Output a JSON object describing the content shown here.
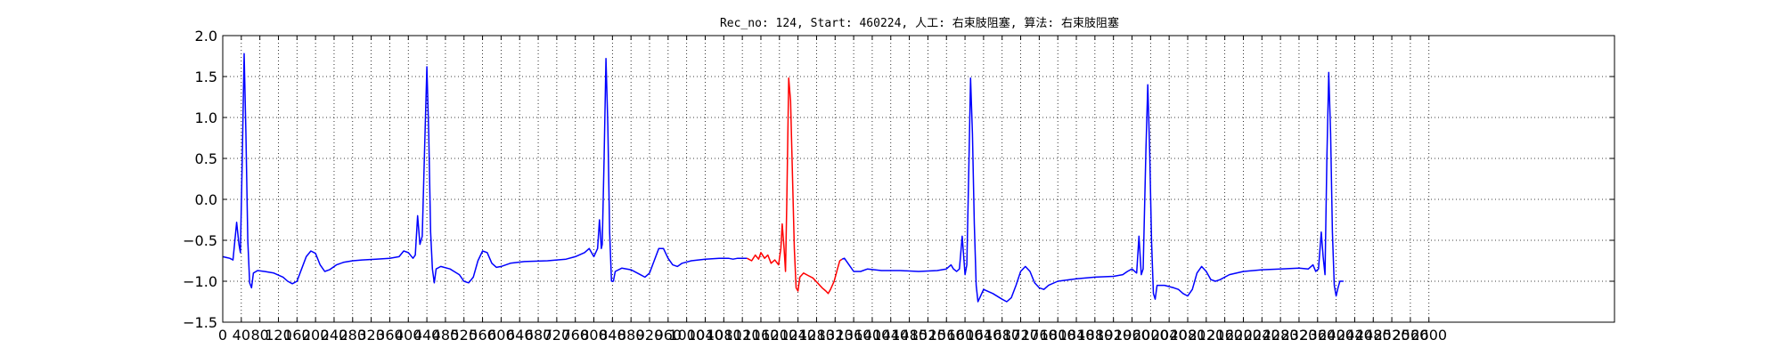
{
  "chart_data": {
    "type": "line",
    "title": "Rec_no: 124, Start: 460224, 人工: 右束肢阻塞, 算法: 右束肢阻塞",
    "xlabel": "",
    "ylabel": "",
    "xlim": [
      0,
      3000
    ],
    "ylim": [
      -1.5,
      2.0
    ],
    "grid": true,
    "x_tick_values": [
      0,
      40,
      80,
      120,
      160,
      200,
      240,
      280,
      320,
      360,
      400,
      440,
      480,
      520,
      560,
      600,
      640,
      680,
      720,
      760,
      800,
      840,
      880,
      920,
      960,
      1000,
      1040,
      1080,
      1120,
      1160,
      1200,
      1240,
      1280,
      1320,
      1360,
      1400,
      1440,
      1480,
      1520,
      1560,
      1600,
      1640,
      1680,
      1720,
      1760,
      1800,
      1840,
      1880,
      1920,
      1960,
      2000,
      2040,
      2080,
      2120,
      2160,
      2200,
      2240,
      2280,
      2320,
      2360,
      2400,
      2440,
      2480,
      2520,
      2560,
      2600
    ],
    "x_tick_labels": [
      "0",
      "40",
      "80",
      "120",
      "160",
      "200",
      "240",
      "280",
      "320",
      "360",
      "400",
      "440",
      "480",
      "520",
      "560",
      "600",
      "640",
      "680",
      "720",
      "760",
      "800",
      "840",
      "880",
      "920",
      "960",
      "1000",
      "1040",
      "1080",
      "1120",
      "1160",
      "1200",
      "1240",
      "1280",
      "1320",
      "1360",
      "1400",
      "1440",
      "1480",
      "1520",
      "1560",
      "1600",
      "1640",
      "1680",
      "1720",
      "1760",
      "1800",
      "1840",
      "1880",
      "1920",
      "1960",
      "2000",
      "2040",
      "2080",
      "2120",
      "2160",
      "2200",
      "2240",
      "2280",
      "2320",
      "2360",
      "2400",
      "2440",
      "2480",
      "2520",
      "2560",
      "2600"
    ],
    "y_tick_values": [
      -1.5,
      -1.0,
      -0.5,
      0.0,
      0.5,
      1.0,
      1.5,
      2.0
    ],
    "y_tick_labels": [
      "−1.5",
      "−1.0",
      "−0.5",
      "0.0",
      "0.5",
      "1.0",
      "1.5",
      "2.0"
    ],
    "series": [
      {
        "color": "#0000ff",
        "points": [
          [
            0,
            -0.7
          ],
          [
            15,
            -0.72
          ],
          [
            22,
            -0.74
          ],
          [
            30,
            -0.28
          ],
          [
            35,
            -0.55
          ],
          [
            38,
            -0.65
          ],
          [
            42,
            0.5
          ],
          [
            46,
            1.78
          ],
          [
            50,
            0.8
          ],
          [
            54,
            -0.5
          ],
          [
            58,
            -1.02
          ],
          [
            62,
            -1.08
          ],
          [
            66,
            -0.9
          ],
          [
            75,
            -0.87
          ],
          [
            90,
            -0.88
          ],
          [
            110,
            -0.9
          ],
          [
            130,
            -0.95
          ],
          [
            140,
            -1.0
          ],
          [
            150,
            -1.03
          ],
          [
            160,
            -1.0
          ],
          [
            170,
            -0.85
          ],
          [
            180,
            -0.7
          ],
          [
            190,
            -0.63
          ],
          [
            200,
            -0.66
          ],
          [
            210,
            -0.8
          ],
          [
            220,
            -0.88
          ],
          [
            230,
            -0.86
          ],
          [
            245,
            -0.8
          ],
          [
            260,
            -0.77
          ],
          [
            280,
            -0.75
          ],
          [
            300,
            -0.74
          ],
          [
            330,
            -0.73
          ],
          [
            360,
            -0.72
          ],
          [
            380,
            -0.7
          ],
          [
            390,
            -0.63
          ],
          [
            400,
            -0.65
          ],
          [
            410,
            -0.72
          ],
          [
            415,
            -0.68
          ],
          [
            420,
            -0.2
          ],
          [
            425,
            -0.55
          ],
          [
            430,
            -0.45
          ],
          [
            435,
            0.6
          ],
          [
            440,
            1.62
          ],
          [
            444,
            0.8
          ],
          [
            448,
            -0.4
          ],
          [
            452,
            -0.85
          ],
          [
            456,
            -1.02
          ],
          [
            460,
            -0.85
          ],
          [
            470,
            -0.82
          ],
          [
            490,
            -0.85
          ],
          [
            510,
            -0.92
          ],
          [
            520,
            -1.0
          ],
          [
            530,
            -1.02
          ],
          [
            540,
            -0.95
          ],
          [
            550,
            -0.75
          ],
          [
            560,
            -0.63
          ],
          [
            570,
            -0.65
          ],
          [
            580,
            -0.78
          ],
          [
            590,
            -0.83
          ],
          [
            600,
            -0.82
          ],
          [
            620,
            -0.78
          ],
          [
            650,
            -0.76
          ],
          [
            700,
            -0.75
          ],
          [
            740,
            -0.73
          ],
          [
            760,
            -0.7
          ],
          [
            780,
            -0.65
          ],
          [
            790,
            -0.6
          ],
          [
            800,
            -0.7
          ],
          [
            808,
            -0.6
          ],
          [
            812,
            -0.25
          ],
          [
            816,
            -0.6
          ],
          [
            818,
            -0.55
          ],
          [
            822,
            0.5
          ],
          [
            826,
            1.72
          ],
          [
            830,
            0.9
          ],
          [
            834,
            -0.4
          ],
          [
            838,
            -1.0
          ],
          [
            842,
            -1.0
          ],
          [
            846,
            -0.88
          ],
          [
            860,
            -0.84
          ],
          [
            880,
            -0.86
          ],
          [
            900,
            -0.92
          ],
          [
            910,
            -0.95
          ],
          [
            920,
            -0.9
          ],
          [
            930,
            -0.75
          ],
          [
            940,
            -0.6
          ],
          [
            950,
            -0.6
          ],
          [
            960,
            -0.72
          ],
          [
            970,
            -0.8
          ],
          [
            980,
            -0.82
          ],
          [
            990,
            -0.78
          ],
          [
            1010,
            -0.75
          ],
          [
            1040,
            -0.73
          ],
          [
            1070,
            -0.72
          ],
          [
            1090,
            -0.72
          ],
          [
            1100,
            -0.73
          ],
          [
            1110,
            -0.72
          ],
          [
            1120,
            -0.72
          ],
          [
            1130,
            -0.72
          ]
        ]
      },
      {
        "color": "#ff0000",
        "points": [
          [
            1130,
            -0.72
          ],
          [
            1140,
            -0.75
          ],
          [
            1148,
            -0.68
          ],
          [
            1155,
            -0.73
          ],
          [
            1160,
            -0.65
          ],
          [
            1168,
            -0.72
          ],
          [
            1175,
            -0.68
          ],
          [
            1182,
            -0.78
          ],
          [
            1190,
            -0.74
          ],
          [
            1198,
            -0.8
          ],
          [
            1203,
            -0.6
          ],
          [
            1206,
            -0.3
          ],
          [
            1210,
            -0.6
          ],
          [
            1213,
            -0.88
          ],
          [
            1216,
            0.0
          ],
          [
            1220,
            1.48
          ],
          [
            1224,
            1.2
          ],
          [
            1228,
            0.3
          ],
          [
            1232,
            -0.6
          ],
          [
            1236,
            -1.08
          ],
          [
            1240,
            -1.12
          ],
          [
            1244,
            -0.95
          ],
          [
            1252,
            -0.9
          ],
          [
            1262,
            -0.93
          ],
          [
            1272,
            -0.96
          ],
          [
            1282,
            -1.02
          ],
          [
            1292,
            -1.08
          ],
          [
            1300,
            -1.12
          ],
          [
            1305,
            -1.15
          ],
          [
            1310,
            -1.1
          ],
          [
            1318,
            -1.0
          ],
          [
            1325,
            -0.85
          ],
          [
            1330,
            -0.75
          ],
          [
            1335,
            -0.73
          ]
        ]
      },
      {
        "color": "#0000ff",
        "points": [
          [
            1335,
            -0.73
          ],
          [
            1340,
            -0.72
          ],
          [
            1350,
            -0.8
          ],
          [
            1360,
            -0.88
          ],
          [
            1375,
            -0.88
          ],
          [
            1390,
            -0.85
          ],
          [
            1420,
            -0.87
          ],
          [
            1460,
            -0.87
          ],
          [
            1500,
            -0.88
          ],
          [
            1540,
            -0.87
          ],
          [
            1560,
            -0.85
          ],
          [
            1570,
            -0.8
          ],
          [
            1575,
            -0.85
          ],
          [
            1582,
            -0.88
          ],
          [
            1588,
            -0.85
          ],
          [
            1594,
            -0.45
          ],
          [
            1600,
            -0.92
          ],
          [
            1604,
            -0.8
          ],
          [
            1608,
            0.3
          ],
          [
            1612,
            1.48
          ],
          [
            1616,
            0.8
          ],
          [
            1620,
            -0.3
          ],
          [
            1624,
            -1.05
          ],
          [
            1628,
            -1.25
          ],
          [
            1632,
            -1.2
          ],
          [
            1640,
            -1.1
          ],
          [
            1660,
            -1.15
          ],
          [
            1680,
            -1.22
          ],
          [
            1690,
            -1.25
          ],
          [
            1700,
            -1.2
          ],
          [
            1710,
            -1.05
          ],
          [
            1720,
            -0.88
          ],
          [
            1730,
            -0.82
          ],
          [
            1740,
            -0.88
          ],
          [
            1750,
            -1.02
          ],
          [
            1760,
            -1.08
          ],
          [
            1770,
            -1.1
          ],
          [
            1780,
            -1.05
          ],
          [
            1800,
            -1.0
          ],
          [
            1840,
            -0.97
          ],
          [
            1880,
            -0.95
          ],
          [
            1920,
            -0.94
          ],
          [
            1940,
            -0.92
          ],
          [
            1950,
            -0.88
          ],
          [
            1960,
            -0.85
          ],
          [
            1970,
            -0.9
          ],
          [
            1975,
            -0.45
          ],
          [
            1980,
            -0.92
          ],
          [
            1984,
            -0.85
          ],
          [
            1990,
            0.6
          ],
          [
            1994,
            1.4
          ],
          [
            1998,
            0.6
          ],
          [
            2002,
            -0.5
          ],
          [
            2006,
            -1.15
          ],
          [
            2010,
            -1.22
          ],
          [
            2014,
            -1.05
          ],
          [
            2030,
            -1.05
          ],
          [
            2050,
            -1.08
          ],
          [
            2060,
            -1.1
          ],
          [
            2070,
            -1.15
          ],
          [
            2080,
            -1.18
          ],
          [
            2090,
            -1.1
          ],
          [
            2100,
            -0.9
          ],
          [
            2110,
            -0.82
          ],
          [
            2120,
            -0.88
          ],
          [
            2130,
            -0.98
          ],
          [
            2140,
            -1.0
          ],
          [
            2150,
            -0.98
          ],
          [
            2170,
            -0.92
          ],
          [
            2200,
            -0.88
          ],
          [
            2240,
            -0.86
          ],
          [
            2280,
            -0.85
          ],
          [
            2320,
            -0.84
          ],
          [
            2340,
            -0.85
          ],
          [
            2350,
            -0.8
          ],
          [
            2356,
            -0.88
          ],
          [
            2362,
            -0.85
          ],
          [
            2368,
            -0.4
          ],
          [
            2372,
            -0.7
          ],
          [
            2376,
            -0.92
          ],
          [
            2380,
            0.5
          ],
          [
            2384,
            1.55
          ],
          [
            2388,
            0.8
          ],
          [
            2392,
            -0.4
          ],
          [
            2396,
            -1.05
          ],
          [
            2400,
            -1.18
          ],
          [
            2404,
            -1.08
          ],
          [
            2408,
            -1.0
          ],
          [
            2416,
            -1.0
          ]
        ]
      }
    ]
  }
}
